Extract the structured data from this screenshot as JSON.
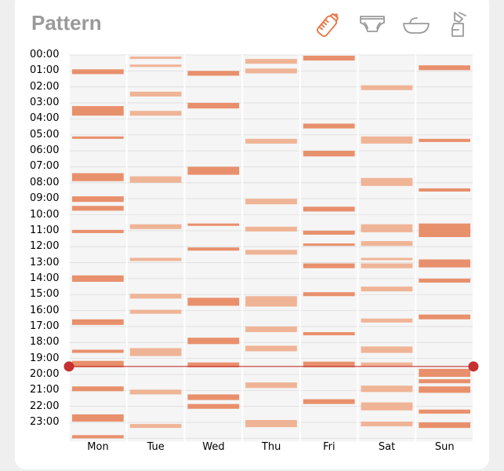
{
  "title": "Pattern",
  "icons": [
    {
      "name": "bottle-icon",
      "color": "#e8703e",
      "active": true
    },
    {
      "name": "diaper-icon",
      "color": "#9a9a9a",
      "active": false
    },
    {
      "name": "bath-icon",
      "color": "#9a9a9a",
      "active": false
    },
    {
      "name": "breast-pump-icon",
      "color": "#9a9a9a",
      "active": false
    }
  ],
  "colors": {
    "accent": "#e8703e",
    "bar_dark": "#e8906c",
    "bar_light": "#efb496",
    "grid_bg": "#f5f5f5",
    "now_line": "#c53030"
  },
  "hours": [
    "00:00",
    "01:00",
    "02:00",
    "03:00",
    "04:00",
    "05:00",
    "06:00",
    "07:00",
    "08:00",
    "09:00",
    "10:00",
    "11:00",
    "12:00",
    "13:00",
    "14:00",
    "15:00",
    "16:00",
    "17:00",
    "18:00",
    "19:00",
    "20:00",
    "21:00",
    "22:00",
    "23:00"
  ],
  "days": [
    "Mon",
    "Tue",
    "Wed",
    "Thu",
    "Fri",
    "Sat",
    "Sun"
  ],
  "now_hour": 19.5,
  "chart_data": {
    "type": "heatmap",
    "title": "Pattern",
    "xlabel": "",
    "ylabel": "",
    "categories": [
      "Mon",
      "Tue",
      "Wed",
      "Thu",
      "Fri",
      "Sat",
      "Sun"
    ],
    "y_range_hours": [
      0,
      24
    ],
    "events": [
      {
        "day": "Mon",
        "blocks": [
          [
            0.9,
            1.2,
            "d"
          ],
          [
            3.2,
            3.8,
            "d"
          ],
          [
            5.1,
            5.25,
            "d"
          ],
          [
            7.4,
            7.9,
            "d"
          ],
          [
            8.85,
            9.2,
            "d"
          ],
          [
            9.45,
            9.75,
            "d"
          ],
          [
            10.95,
            11.15,
            "d"
          ],
          [
            13.8,
            14.2,
            "d"
          ],
          [
            16.55,
            16.9,
            "d"
          ],
          [
            18.45,
            18.65,
            "d"
          ],
          [
            19.15,
            19.55,
            "d"
          ],
          [
            20.75,
            21.05,
            "d"
          ],
          [
            22.5,
            22.95,
            "d"
          ],
          [
            23.8,
            24.0,
            "d"
          ]
        ]
      },
      {
        "day": "Tue",
        "blocks": [
          [
            0.1,
            0.25,
            "l"
          ],
          [
            0.6,
            0.75,
            "l"
          ],
          [
            2.3,
            2.6,
            "l"
          ],
          [
            3.5,
            3.8,
            "l"
          ],
          [
            7.6,
            8.0,
            "l"
          ],
          [
            10.6,
            10.9,
            "l"
          ],
          [
            12.7,
            12.9,
            "l"
          ],
          [
            14.95,
            15.25,
            "l"
          ],
          [
            15.95,
            16.2,
            "l"
          ],
          [
            18.35,
            18.85,
            "l"
          ],
          [
            20.95,
            21.25,
            "l"
          ],
          [
            23.1,
            23.35,
            "l"
          ]
        ]
      },
      {
        "day": "Wed",
        "blocks": [
          [
            1.0,
            1.3,
            "d"
          ],
          [
            3.0,
            3.35,
            "d"
          ],
          [
            7.0,
            7.5,
            "d"
          ],
          [
            10.55,
            10.7,
            "d"
          ],
          [
            12.05,
            12.25,
            "d"
          ],
          [
            15.2,
            15.7,
            "d"
          ],
          [
            17.7,
            18.1,
            "d"
          ],
          [
            19.25,
            19.55,
            "d"
          ],
          [
            21.25,
            21.6,
            "d"
          ],
          [
            21.85,
            22.15,
            "d"
          ]
        ]
      },
      {
        "day": "Thu",
        "blocks": [
          [
            0.25,
            0.55,
            "l"
          ],
          [
            0.85,
            1.15,
            "l"
          ],
          [
            5.25,
            5.55,
            "l"
          ],
          [
            9.0,
            9.35,
            "l"
          ],
          [
            10.75,
            11.05,
            "l"
          ],
          [
            12.2,
            12.5,
            "l"
          ],
          [
            15.1,
            15.75,
            "l"
          ],
          [
            17.0,
            17.35,
            "l"
          ],
          [
            18.2,
            18.55,
            "l"
          ],
          [
            20.5,
            20.85,
            "l"
          ],
          [
            22.85,
            23.3,
            "l"
          ]
        ]
      },
      {
        "day": "Fri",
        "blocks": [
          [
            0.05,
            0.35,
            "d"
          ],
          [
            4.3,
            4.6,
            "d"
          ],
          [
            6.0,
            6.35,
            "d"
          ],
          [
            9.5,
            9.8,
            "d"
          ],
          [
            11.0,
            11.25,
            "d"
          ],
          [
            11.8,
            11.95,
            "d"
          ],
          [
            13.05,
            13.35,
            "d"
          ],
          [
            14.85,
            15.1,
            "d"
          ],
          [
            17.35,
            17.55,
            "d"
          ],
          [
            19.2,
            19.55,
            "d"
          ],
          [
            21.55,
            21.85,
            "d"
          ]
        ]
      },
      {
        "day": "Sat",
        "blocks": [
          [
            1.9,
            2.2,
            "l"
          ],
          [
            5.1,
            5.55,
            "l"
          ],
          [
            7.7,
            8.2,
            "l"
          ],
          [
            10.6,
            11.1,
            "l"
          ],
          [
            11.65,
            11.95,
            "l"
          ],
          [
            12.7,
            12.85,
            "l"
          ],
          [
            13.05,
            13.35,
            "l"
          ],
          [
            14.5,
            14.8,
            "l"
          ],
          [
            16.5,
            16.75,
            "l"
          ],
          [
            18.25,
            18.65,
            "l"
          ],
          [
            19.25,
            19.5,
            "l"
          ],
          [
            20.7,
            21.1,
            "l"
          ],
          [
            21.75,
            22.25,
            "l"
          ],
          [
            22.95,
            23.25,
            "l"
          ]
        ]
      },
      {
        "day": "Sun",
        "blocks": [
          [
            0.65,
            0.95,
            "d"
          ],
          [
            5.25,
            5.45,
            "d"
          ],
          [
            8.35,
            8.55,
            "d"
          ],
          [
            10.55,
            11.4,
            "d"
          ],
          [
            12.8,
            13.3,
            "d"
          ],
          [
            14.0,
            14.25,
            "d"
          ],
          [
            16.25,
            16.55,
            "d"
          ],
          [
            19.65,
            20.15,
            "d"
          ],
          [
            20.3,
            20.55,
            "d"
          ],
          [
            20.75,
            21.15,
            "d"
          ],
          [
            22.2,
            22.45,
            "d"
          ],
          [
            23.0,
            23.35,
            "d"
          ]
        ]
      }
    ]
  }
}
